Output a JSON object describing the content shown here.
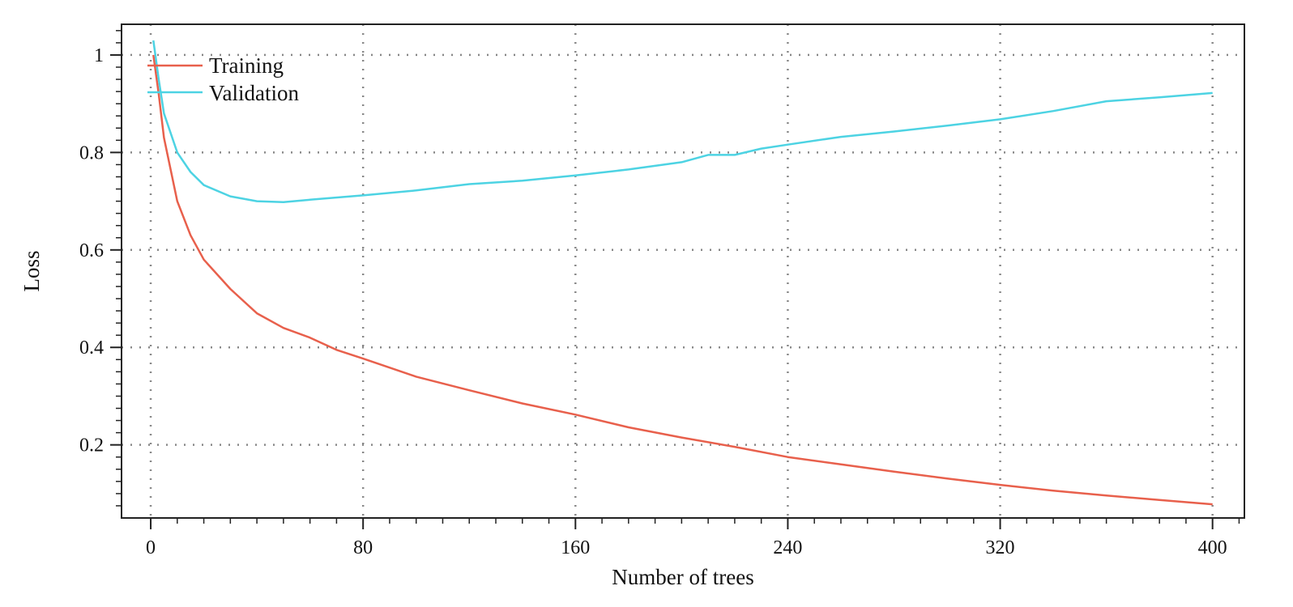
{
  "chart_data": {
    "type": "line",
    "title": "",
    "xlabel": "Number of trees",
    "ylabel": "Loss",
    "xlim": [
      -11,
      412
    ],
    "ylim": [
      0.05,
      1.063
    ],
    "xticks": [
      0,
      80,
      160,
      240,
      320,
      400
    ],
    "xtick_labels": [
      "0",
      "80",
      "160",
      "240",
      "320",
      "400"
    ],
    "yticks": [
      0.2,
      0.4,
      0.6,
      0.8,
      1
    ],
    "ytick_labels": [
      "0.2",
      "0.4",
      "0.6",
      "0.8",
      "1"
    ],
    "x_minor_step": 10,
    "y_minor_step": 0.025,
    "grid": true,
    "grid_style": "dotted",
    "legend_placement": "top-left",
    "series": [
      {
        "name": "Training",
        "color": "#e8604c",
        "x": [
          1,
          3,
          5,
          10,
          15,
          20,
          30,
          40,
          50,
          60,
          70,
          80,
          100,
          120,
          140,
          160,
          180,
          200,
          220,
          240,
          260,
          280,
          300,
          320,
          340,
          360,
          380,
          400
        ],
        "y": [
          1.0,
          0.92,
          0.83,
          0.7,
          0.63,
          0.58,
          0.52,
          0.47,
          0.44,
          0.42,
          0.395,
          0.377,
          0.34,
          0.312,
          0.285,
          0.262,
          0.236,
          0.215,
          0.196,
          0.175,
          0.16,
          0.145,
          0.131,
          0.118,
          0.106,
          0.096,
          0.087,
          0.078
        ]
      },
      {
        "name": "Validation",
        "color": "#4dd3e3",
        "x": [
          1,
          3,
          5,
          10,
          15,
          20,
          30,
          40,
          50,
          60,
          80,
          100,
          120,
          140,
          160,
          180,
          200,
          210,
          220,
          230,
          240,
          260,
          280,
          300,
          320,
          340,
          360,
          380,
          400
        ],
        "y": [
          1.03,
          0.95,
          0.88,
          0.8,
          0.76,
          0.733,
          0.71,
          0.7,
          0.698,
          0.703,
          0.712,
          0.722,
          0.735,
          0.742,
          0.753,
          0.765,
          0.78,
          0.795,
          0.795,
          0.808,
          0.816,
          0.832,
          0.843,
          0.855,
          0.868,
          0.885,
          0.905,
          0.913,
          0.922
        ]
      }
    ]
  }
}
